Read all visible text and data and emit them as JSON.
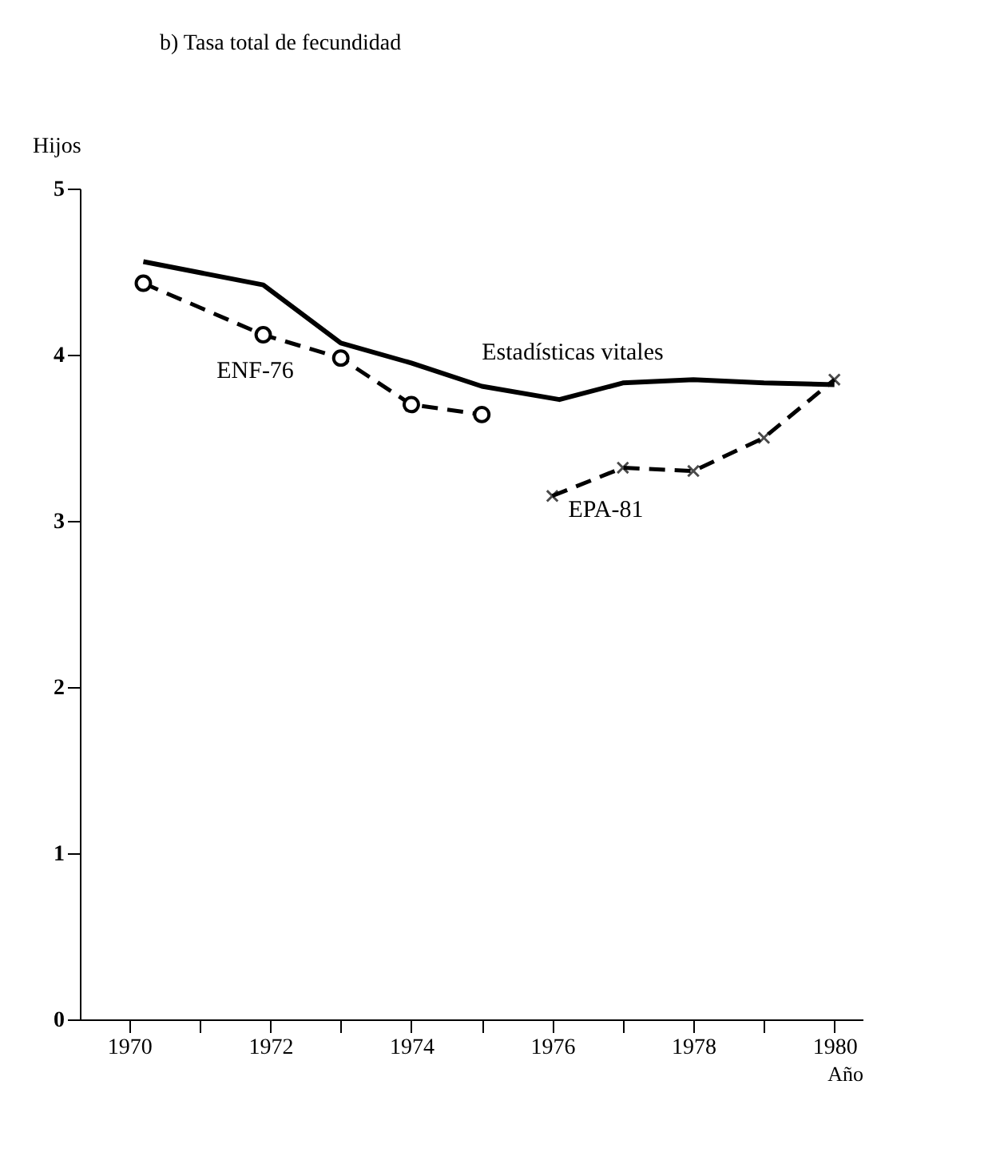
{
  "chart_data": {
    "type": "line",
    "title": "b) Tasa total de fecundidad",
    "ylabel": "Hijos",
    "xlabel": "Año",
    "xlim": [
      1969.3,
      1980.4
    ],
    "xticks": [
      {
        "value": 1970,
        "label": "1970"
      },
      {
        "value": 1971,
        "label": null
      },
      {
        "value": 1972,
        "label": "1972"
      },
      {
        "value": 1973,
        "label": null
      },
      {
        "value": 1974,
        "label": "1974"
      },
      {
        "value": 1975,
        "label": null
      },
      {
        "value": 1976,
        "label": "1976"
      },
      {
        "value": 1977,
        "label": null
      },
      {
        "value": 1978,
        "label": "1978"
      },
      {
        "value": 1979,
        "label": null
      },
      {
        "value": 1980,
        "label": "1980"
      }
    ],
    "ylim": [
      0,
      5
    ],
    "yticks": [
      0,
      1,
      2,
      3,
      4,
      5
    ],
    "grid": false,
    "series": [
      {
        "name": "Estadísticas vitales",
        "color": "#000000",
        "line_style": "solid",
        "marker": "none",
        "x": [
          1970.2,
          1971.9,
          1973,
          1974,
          1975,
          1976.1,
          1977,
          1978,
          1979,
          1980
        ],
        "values": [
          4.56,
          4.42,
          4.07,
          3.95,
          3.81,
          3.73,
          3.83,
          3.85,
          3.83,
          3.82
        ]
      },
      {
        "name": "ENF-76",
        "color": "#000000",
        "line_style": "dashed",
        "marker": "circle",
        "x": [
          1970.2,
          1971.9,
          1973,
          1974,
          1975
        ],
        "values": [
          4.43,
          4.12,
          3.98,
          3.7,
          3.64
        ]
      },
      {
        "name": "EPA-81",
        "color": "#000000",
        "line_style": "dashed",
        "marker": "cross",
        "x": [
          1976,
          1977,
          1978,
          1979,
          1980
        ],
        "values": [
          3.15,
          3.32,
          3.3,
          3.5,
          3.85
        ]
      }
    ]
  }
}
